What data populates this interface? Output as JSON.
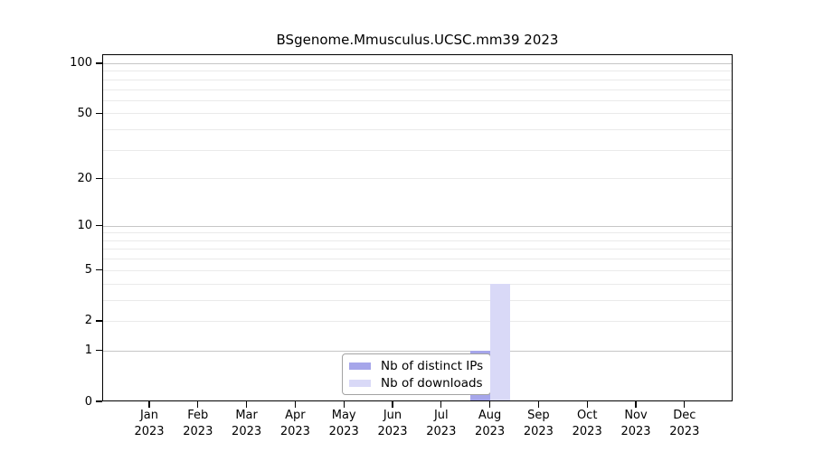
{
  "chart_data": {
    "type": "bar",
    "title": "BSgenome.Mmusculus.UCSC.mm39 2023",
    "categories": [
      "Jan 2023",
      "Feb 2023",
      "Mar 2023",
      "Apr 2023",
      "May 2023",
      "Jun 2023",
      "Jul 2023",
      "Aug 2023",
      "Sep 2023",
      "Oct 2023",
      "Nov 2023",
      "Dec 2023"
    ],
    "x_tick_labels": [
      [
        "Jan",
        "2023"
      ],
      [
        "Feb",
        "2023"
      ],
      [
        "Mar",
        "2023"
      ],
      [
        "Apr",
        "2023"
      ],
      [
        "May",
        "2023"
      ],
      [
        "Jun",
        "2023"
      ],
      [
        "Jul",
        "2023"
      ],
      [
        "Aug",
        "2023"
      ],
      [
        "Sep",
        "2023"
      ],
      [
        "Oct",
        "2023"
      ],
      [
        "Nov",
        "2023"
      ],
      [
        "Dec",
        "2023"
      ]
    ],
    "series": [
      {
        "name": "Nb of distinct IPs",
        "color": "#a6a6ea",
        "values": [
          0,
          0,
          0,
          0,
          0,
          0,
          0,
          1,
          0,
          0,
          0,
          0
        ]
      },
      {
        "name": "Nb of downloads",
        "color": "#d9d9f7",
        "values": [
          0,
          0,
          0,
          0,
          0,
          0,
          0,
          4,
          0,
          0,
          0,
          0
        ]
      }
    ],
    "y_axis": {
      "scale": "log10(1+y)",
      "tick_values": [
        0,
        1,
        2,
        5,
        10,
        20,
        50,
        100
      ],
      "ylim": [
        0,
        113
      ],
      "major_gridlines": [
        1,
        10,
        100
      ],
      "minor_gridlines": [
        2,
        3,
        4,
        5,
        6,
        7,
        8,
        9,
        20,
        30,
        40,
        50,
        60,
        70,
        80,
        90
      ]
    },
    "xlabel": "",
    "ylabel": "",
    "legend": {
      "position": "bottom-center-inside",
      "entries": [
        "Nb of distinct IPs",
        "Nb of downloads"
      ]
    },
    "colors": {
      "background": "#ffffff",
      "axis": "#000000",
      "major_grid": "#c6c6c6",
      "minor_grid": "#eaeaea",
      "legend_border": "#a3a3a3",
      "legend_background": "#ffffff"
    }
  }
}
